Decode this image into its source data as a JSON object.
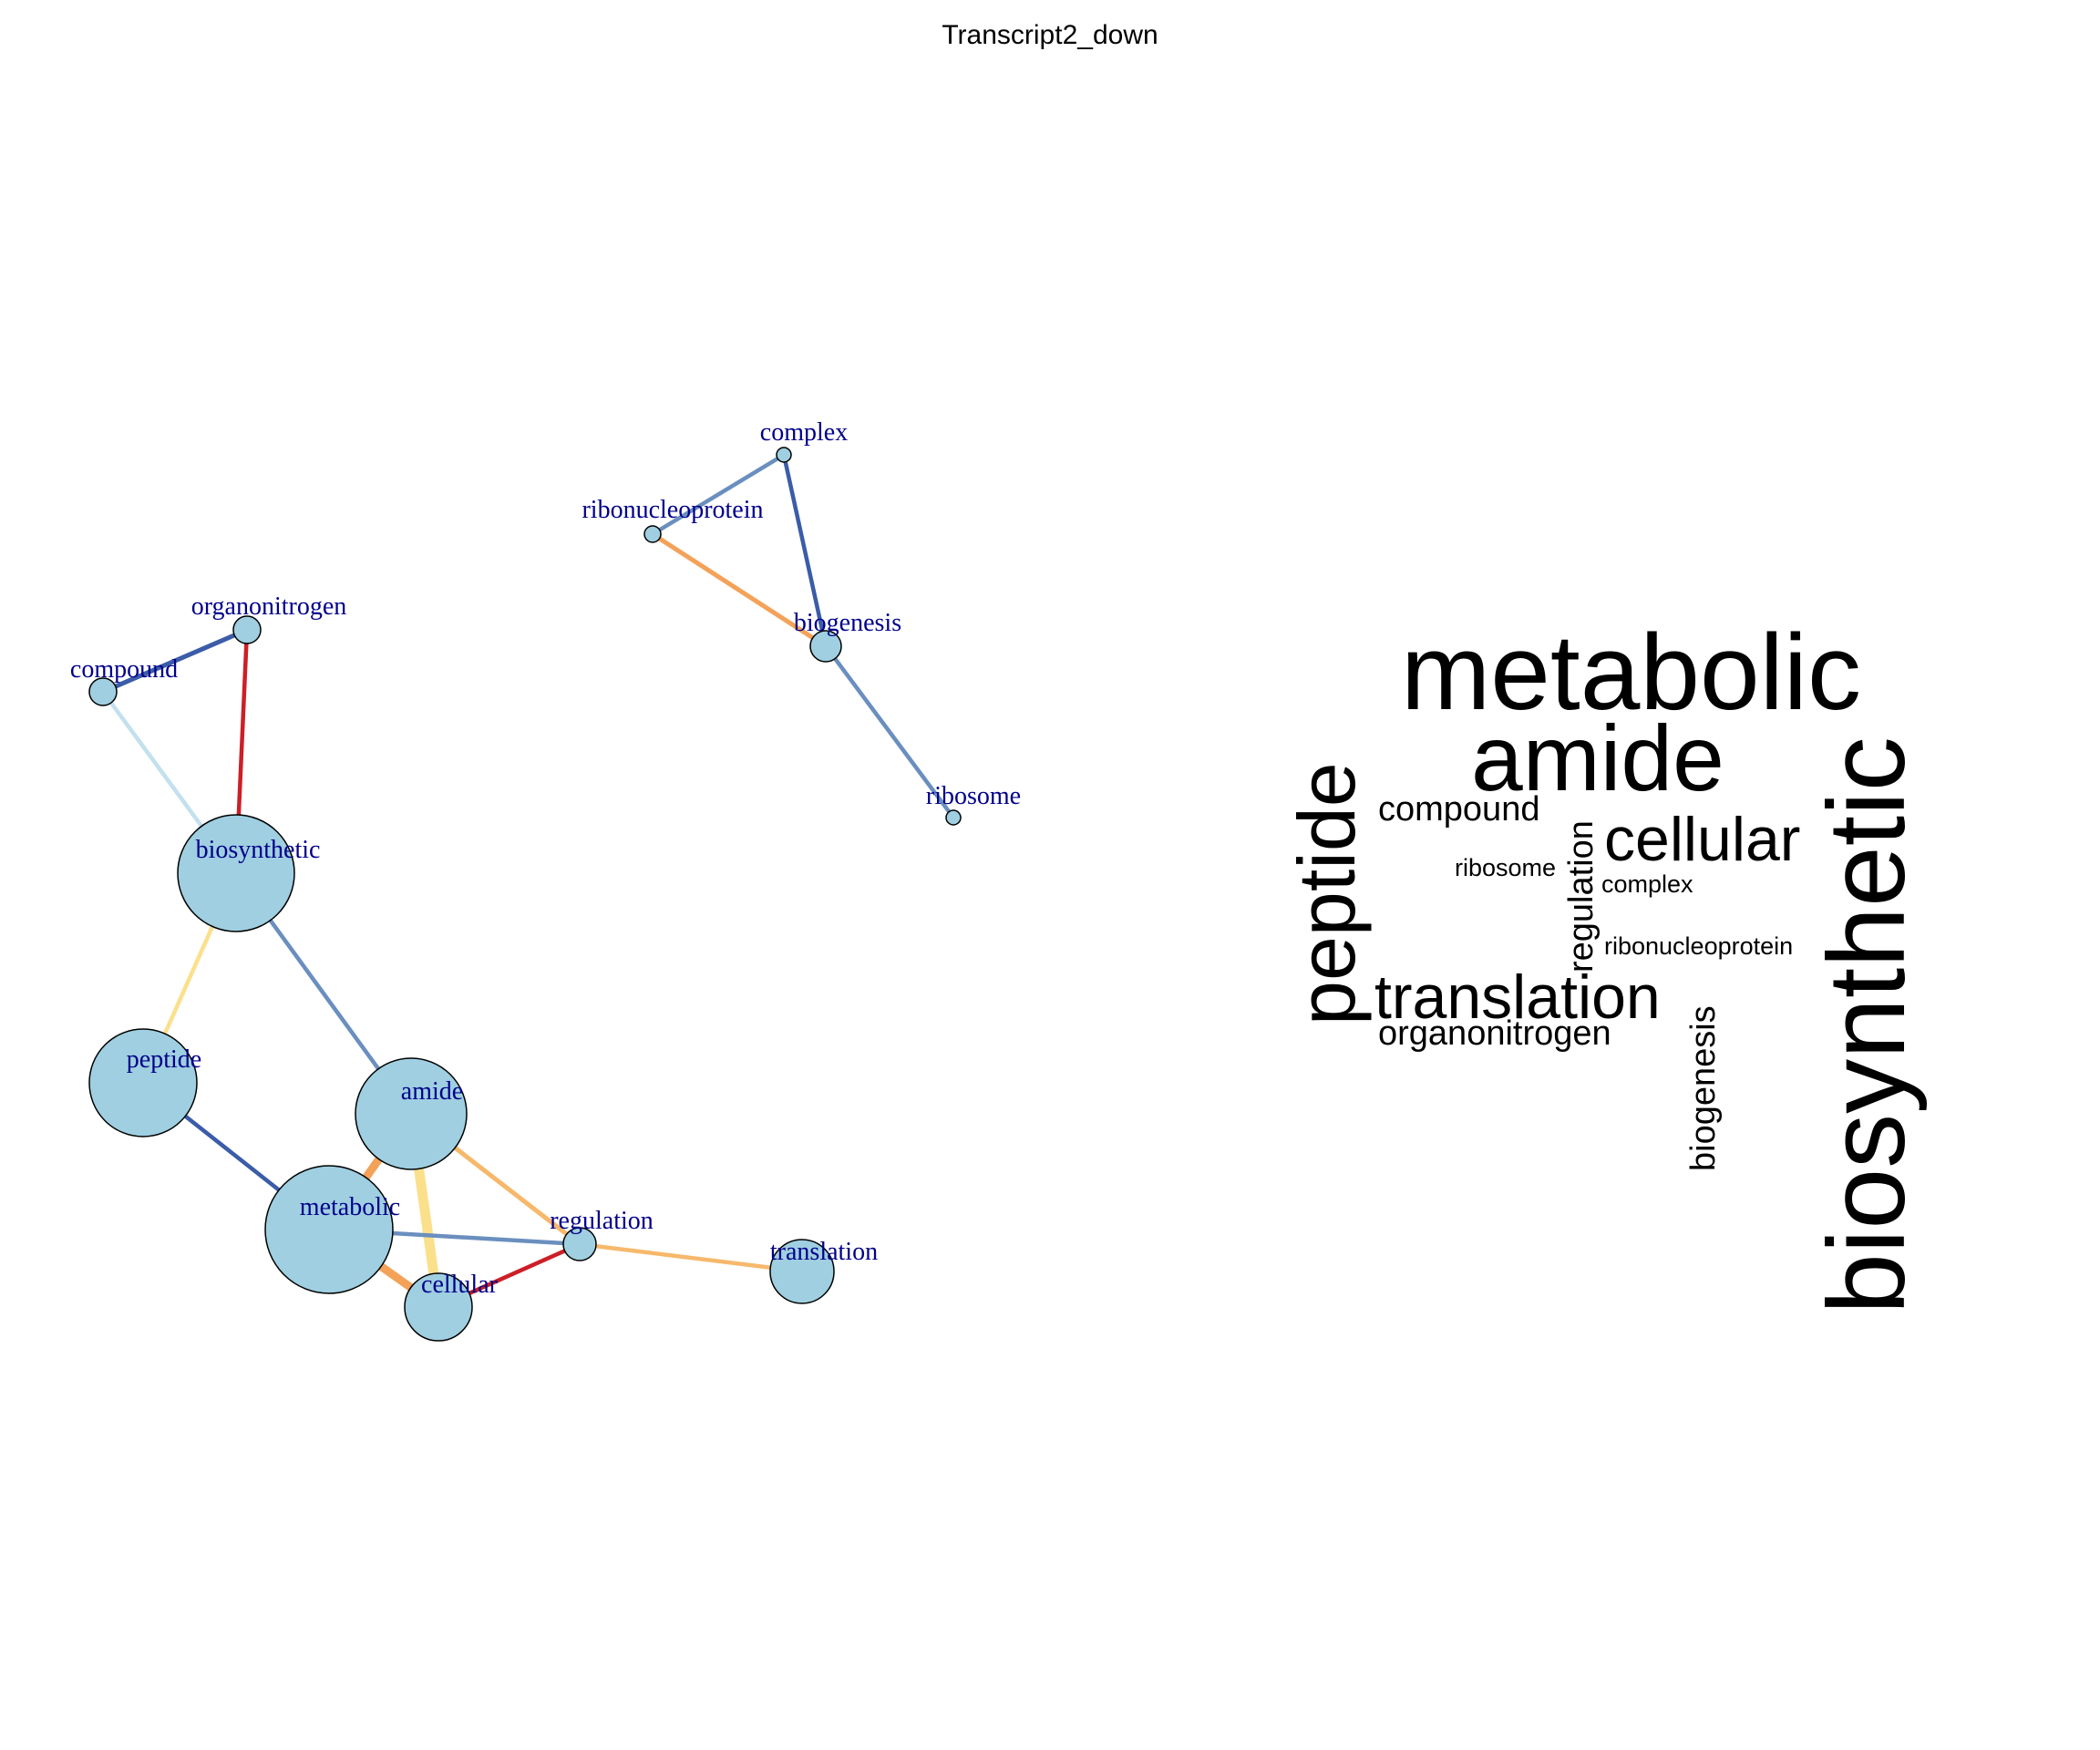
{
  "title": "Transcript2_down",
  "network": {
    "nodes": [
      {
        "id": "complex",
        "label": "complex"
      },
      {
        "id": "ribonucleoprotein",
        "label": "ribonucleoprotein"
      },
      {
        "id": "biogenesis",
        "label": "biogenesis"
      },
      {
        "id": "ribosome",
        "label": "ribosome"
      },
      {
        "id": "organonitrogen",
        "label": "organonitrogen"
      },
      {
        "id": "compound",
        "label": "compound"
      },
      {
        "id": "biosynthetic",
        "label": "biosynthetic"
      },
      {
        "id": "peptide",
        "label": "peptide"
      },
      {
        "id": "amide",
        "label": "amide"
      },
      {
        "id": "metabolic",
        "label": "metabolic"
      },
      {
        "id": "cellular",
        "label": "cellular"
      },
      {
        "id": "regulation",
        "label": "regulation"
      },
      {
        "id": "translation",
        "label": "translation"
      }
    ],
    "edges": [
      {
        "from": "complex",
        "to": "ribonucleoprotein",
        "color": "#6a8fbf"
      },
      {
        "from": "complex",
        "to": "biogenesis",
        "color": "#3b5ca8"
      },
      {
        "from": "ribonucleoprotein",
        "to": "biogenesis",
        "color": "#f4a259"
      },
      {
        "from": "biogenesis",
        "to": "ribosome",
        "color": "#6a8fbf"
      },
      {
        "from": "organonitrogen",
        "to": "compound",
        "color": "#3b5ca8"
      },
      {
        "from": "organonitrogen",
        "to": "biosynthetic",
        "color": "#cc1f26"
      },
      {
        "from": "compound",
        "to": "biosynthetic",
        "color": "#c3e0ee"
      },
      {
        "from": "biosynthetic",
        "to": "peptide",
        "color": "#fbe08c"
      },
      {
        "from": "biosynthetic",
        "to": "amide",
        "color": "#6a8fbf"
      },
      {
        "from": "peptide",
        "to": "metabolic",
        "color": "#3b5ca8"
      },
      {
        "from": "amide",
        "to": "metabolic",
        "color": "#f4a259"
      },
      {
        "from": "amide",
        "to": "cellular",
        "color": "#fbe08c"
      },
      {
        "from": "amide",
        "to": "regulation",
        "color": "#f7b86b"
      },
      {
        "from": "metabolic",
        "to": "regulation",
        "color": "#6a8fbf"
      },
      {
        "from": "metabolic",
        "to": "cellular",
        "color": "#f4a259"
      },
      {
        "from": "cellular",
        "to": "regulation",
        "color": "#cc1f26"
      },
      {
        "from": "regulation",
        "to": "translation",
        "color": "#f7b86b"
      }
    ],
    "node_fill": "#9fcfe0",
    "label_color": "#00008b"
  },
  "word_cloud": {
    "words": [
      {
        "text": "metabolic"
      },
      {
        "text": "amide"
      },
      {
        "text": "peptide"
      },
      {
        "text": "biosynthetic"
      },
      {
        "text": "compound"
      },
      {
        "text": "cellular"
      },
      {
        "text": "ribosome"
      },
      {
        "text": "regulation"
      },
      {
        "text": "complex"
      },
      {
        "text": "ribonucleoprotein"
      },
      {
        "text": "translation"
      },
      {
        "text": "organonitrogen"
      },
      {
        "text": "biogenesis"
      }
    ]
  }
}
